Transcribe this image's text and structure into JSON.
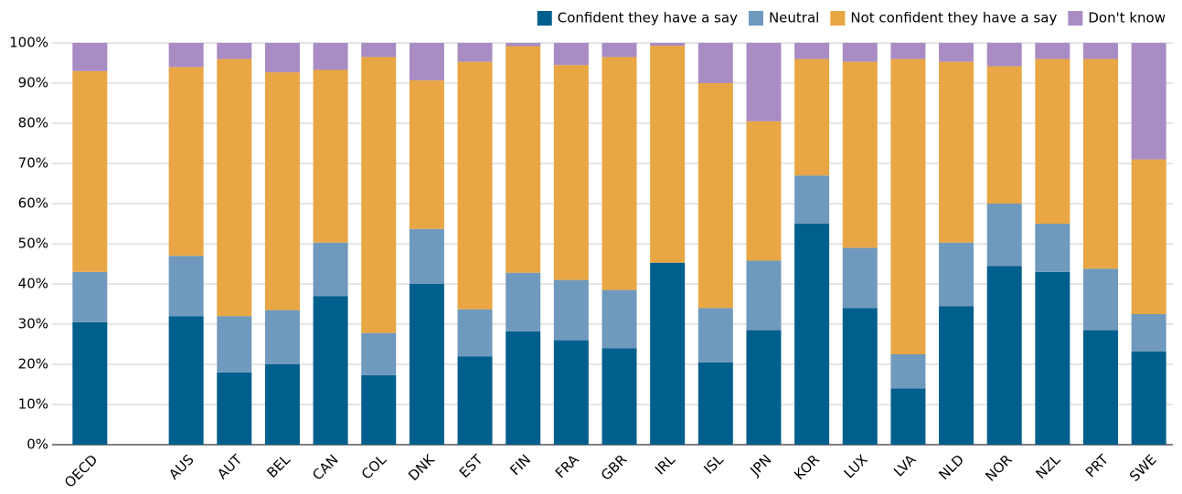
{
  "chart_data": {
    "type": "stacked_bar",
    "categories": [
      "OECD",
      null,
      "AUS",
      "AUT",
      "BEL",
      "CAN",
      "COL",
      "DNK",
      "EST",
      "FIN",
      "FRA",
      "GBR",
      "IRL",
      "ISL",
      "JPN",
      "KOR",
      "LUX",
      "LVA",
      "NLD",
      "NOR",
      "NZL",
      "PRT",
      "SWE"
    ],
    "series": [
      {
        "name": "Confident they have a say",
        "color": "#005f8c",
        "values": [
          30.5,
          null,
          32,
          18,
          20,
          37,
          17.3,
          40,
          22,
          28.2,
          26,
          24,
          45.3,
          20.5,
          28.5,
          55,
          34,
          14,
          34.5,
          44.5,
          43,
          28.5,
          23.2
        ]
      },
      {
        "name": "Neutral",
        "color": "#6f99bd",
        "values": [
          12.5,
          null,
          15,
          14,
          13.5,
          13.3,
          10.5,
          13.7,
          11.7,
          14.6,
          15,
          14.5,
          0,
          13.5,
          17.3,
          12,
          15,
          8.5,
          15.8,
          15.5,
          12,
          15.3,
          9.3
        ]
      },
      {
        "name": "Not confident they have a say",
        "color": "#e8a644",
        "values": [
          50,
          null,
          47,
          64,
          59.2,
          43,
          68.7,
          37,
          61.6,
          56.4,
          53.5,
          58,
          54,
          56,
          34.7,
          29,
          46.3,
          73.5,
          45,
          34.2,
          41,
          52.2,
          38.5
        ]
      },
      {
        "name": "Don't know",
        "color": "#a98cc4",
        "values": [
          7,
          null,
          6,
          4,
          7.3,
          6.7,
          3.5,
          9.3,
          4.7,
          0.8,
          5.5,
          3.5,
          0.7,
          10,
          19.5,
          4,
          4.7,
          4,
          4.7,
          5.8,
          4,
          4,
          29
        ]
      }
    ],
    "ylim": [
      0,
      100
    ],
    "yticks": [
      {
        "value": 0,
        "label": "0%"
      },
      {
        "value": 10,
        "label": "10%"
      },
      {
        "value": 20,
        "label": "20%"
      },
      {
        "value": 30,
        "label": "30%"
      },
      {
        "value": 40,
        "label": "40%"
      },
      {
        "value": 50,
        "label": "50%"
      },
      {
        "value": 60,
        "label": "60%"
      },
      {
        "value": 70,
        "label": "70%"
      },
      {
        "value": 80,
        "label": "80%"
      },
      {
        "value": 90,
        "label": "90%"
      },
      {
        "value": 100,
        "label": "100%"
      }
    ],
    "grid": true,
    "legend": "top-right"
  }
}
